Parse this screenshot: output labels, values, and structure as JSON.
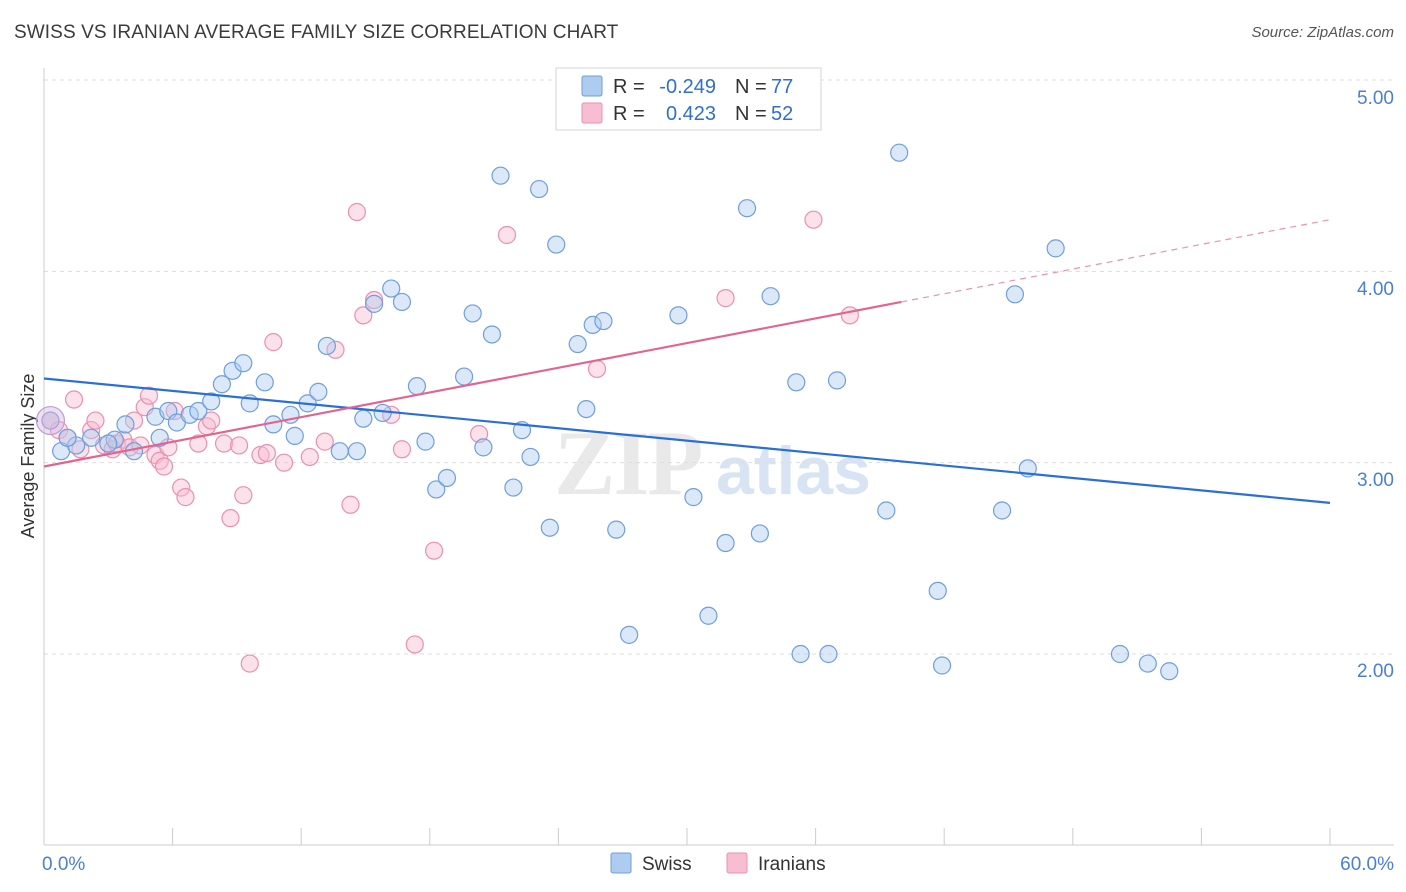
{
  "title": "SWISS VS IRANIAN AVERAGE FAMILY SIZE CORRELATION CHART",
  "source": "Source: ZipAtlas.com",
  "watermark": {
    "zip": "ZIP",
    "atlas": "atlas"
  },
  "legend": {
    "rows": [
      {
        "r_label": "R =",
        "r_value": "-0.249",
        "n_label": "N =",
        "n_value": "77"
      },
      {
        "r_label": "R =",
        "r_value": "0.423",
        "n_label": "N =",
        "n_value": "52"
      }
    ]
  },
  "colors": {
    "swiss_fill": "#aecbf0",
    "swiss_stroke": "#6f9ee0",
    "swiss_line": "#2b6fd6",
    "iranian_fill": "#f7bdd0",
    "iranian_stroke": "#ec8fb0",
    "iranian_line": "#e2648f",
    "grid": "#dddddd",
    "tick": "#4a7fd4"
  },
  "chart_data": {
    "type": "scatter",
    "title": "SWISS VS IRANIAN AVERAGE FAMILY SIZE CORRELATION CHART",
    "xlabel": "",
    "ylabel": "Average Family Size",
    "x_tick_labels": [
      "0.0%",
      "60.0%"
    ],
    "y_tick_labels": [
      "2.00",
      "3.00",
      "4.00",
      "5.00"
    ],
    "xlim": [
      0,
      60
    ],
    "ylim": [
      1.0,
      5.1
    ],
    "grid": true,
    "legend_position": "top-center",
    "series": [
      {
        "name": "Swiss",
        "r": -0.249,
        "n": 77,
        "trend": {
          "x0": 0,
          "y0": 3.44,
          "x1": 60,
          "y1": 2.79
        },
        "points": [
          [
            0.3,
            3.22
          ],
          [
            0.8,
            3.06
          ],
          [
            1.5,
            3.09
          ],
          [
            2.2,
            3.13
          ],
          [
            3.3,
            3.12
          ],
          [
            3.8,
            3.2
          ],
          [
            4.2,
            3.06
          ],
          [
            5.2,
            3.24
          ],
          [
            5.4,
            3.13
          ],
          [
            5.8,
            3.27
          ],
          [
            6.2,
            3.21
          ],
          [
            6.8,
            3.25
          ],
          [
            7.2,
            3.27
          ],
          [
            7.8,
            3.32
          ],
          [
            8.3,
            3.41
          ],
          [
            8.8,
            3.48
          ],
          [
            9.3,
            3.52
          ],
          [
            9.6,
            3.31
          ],
          [
            10.3,
            3.42
          ],
          [
            10.7,
            3.2
          ],
          [
            11.5,
            3.25
          ],
          [
            11.7,
            3.14
          ],
          [
            12.3,
            3.31
          ],
          [
            12.8,
            3.37
          ],
          [
            13.2,
            3.61
          ],
          [
            13.8,
            3.06
          ],
          [
            14.6,
            3.06
          ],
          [
            14.9,
            3.23
          ],
          [
            15.4,
            3.83
          ],
          [
            15.8,
            3.26
          ],
          [
            16.2,
            3.91
          ],
          [
            16.7,
            3.84
          ],
          [
            17.4,
            3.4
          ],
          [
            17.8,
            3.11
          ],
          [
            18.3,
            2.86
          ],
          [
            18.8,
            2.92
          ],
          [
            19.6,
            3.45
          ],
          [
            20.0,
            3.78
          ],
          [
            20.5,
            3.08
          ],
          [
            20.9,
            3.67
          ],
          [
            21.3,
            4.5
          ],
          [
            21.9,
            2.87
          ],
          [
            22.3,
            3.17
          ],
          [
            22.7,
            3.03
          ],
          [
            23.1,
            4.43
          ],
          [
            23.6,
            2.66
          ],
          [
            23.9,
            4.14
          ],
          [
            24.9,
            3.62
          ],
          [
            25.3,
            3.28
          ],
          [
            25.6,
            3.72
          ],
          [
            26.1,
            3.74
          ],
          [
            26.7,
            2.65
          ],
          [
            27.3,
            2.1
          ],
          [
            29.6,
            3.77
          ],
          [
            30.3,
            2.82
          ],
          [
            31.0,
            2.2
          ],
          [
            31.8,
            2.58
          ],
          [
            32.8,
            4.33
          ],
          [
            33.4,
            2.63
          ],
          [
            33.9,
            3.87
          ],
          [
            35.1,
            3.42
          ],
          [
            35.3,
            2.0
          ],
          [
            36.6,
            2.0
          ],
          [
            37.0,
            3.43
          ],
          [
            39.3,
            2.75
          ],
          [
            39.9,
            4.62
          ],
          [
            41.7,
            2.33
          ],
          [
            41.9,
            1.94
          ],
          [
            44.7,
            2.75
          ],
          [
            45.3,
            3.88
          ],
          [
            45.9,
            2.97
          ],
          [
            47.2,
            4.12
          ],
          [
            50.2,
            2.0
          ],
          [
            51.5,
            1.95
          ],
          [
            52.5,
            1.91
          ],
          [
            1.1,
            3.13
          ],
          [
            3.0,
            3.1
          ]
        ]
      },
      {
        "name": "Iranians",
        "r": 0.423,
        "n": 52,
        "trend": {
          "x0": 0,
          "y0": 2.98,
          "x1": 40,
          "y1": 3.84,
          "x_ext": 60,
          "y_ext": 4.27
        },
        "points": [
          [
            0.3,
            3.22
          ],
          [
            0.7,
            3.17
          ],
          [
            1.1,
            3.13
          ],
          [
            1.4,
            3.33
          ],
          [
            1.7,
            3.07
          ],
          [
            2.2,
            3.17
          ],
          [
            2.4,
            3.22
          ],
          [
            2.8,
            3.09
          ],
          [
            3.2,
            3.07
          ],
          [
            3.4,
            3.1
          ],
          [
            3.7,
            3.12
          ],
          [
            4.0,
            3.08
          ],
          [
            4.2,
            3.22
          ],
          [
            4.5,
            3.09
          ],
          [
            4.7,
            3.29
          ],
          [
            4.9,
            3.35
          ],
          [
            5.2,
            3.04
          ],
          [
            5.4,
            3.01
          ],
          [
            5.6,
            2.98
          ],
          [
            5.8,
            3.08
          ],
          [
            6.1,
            3.27
          ],
          [
            6.4,
            2.87
          ],
          [
            6.6,
            2.82
          ],
          [
            7.2,
            3.1
          ],
          [
            7.6,
            3.19
          ],
          [
            7.8,
            3.22
          ],
          [
            8.4,
            3.1
          ],
          [
            8.7,
            2.71
          ],
          [
            9.1,
            3.09
          ],
          [
            9.3,
            2.83
          ],
          [
            9.6,
            1.95
          ],
          [
            10.1,
            3.04
          ],
          [
            10.4,
            3.05
          ],
          [
            10.7,
            3.63
          ],
          [
            11.2,
            3.0
          ],
          [
            12.4,
            3.03
          ],
          [
            13.1,
            3.11
          ],
          [
            13.6,
            3.59
          ],
          [
            14.3,
            2.78
          ],
          [
            14.6,
            4.31
          ],
          [
            14.9,
            3.77
          ],
          [
            15.4,
            3.85
          ],
          [
            16.2,
            3.25
          ],
          [
            16.7,
            3.07
          ],
          [
            17.3,
            2.05
          ],
          [
            18.2,
            2.54
          ],
          [
            20.3,
            3.15
          ],
          [
            21.6,
            4.19
          ],
          [
            25.8,
            3.49
          ],
          [
            31.8,
            3.86
          ],
          [
            35.9,
            4.27
          ],
          [
            37.6,
            3.77
          ]
        ]
      }
    ]
  }
}
